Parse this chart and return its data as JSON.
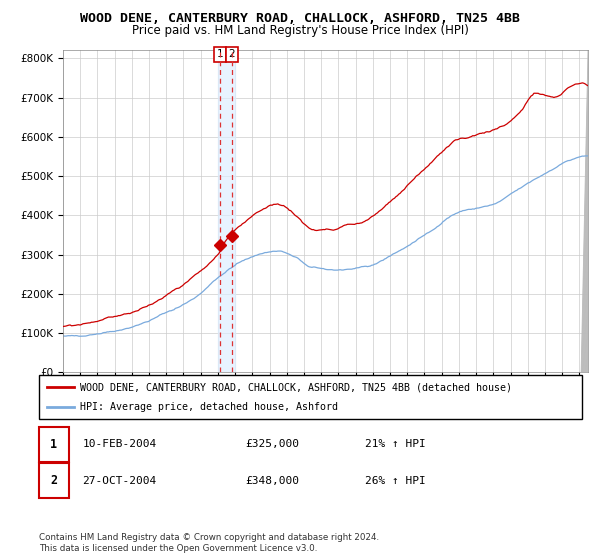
{
  "title": "WOOD DENE, CANTERBURY ROAD, CHALLOCK, ASHFORD, TN25 4BB",
  "subtitle": "Price paid vs. HM Land Registry's House Price Index (HPI)",
  "legend_line1": "WOOD DENE, CANTERBURY ROAD, CHALLOCK, ASHFORD, TN25 4BB (detached house)",
  "legend_line2": "HPI: Average price, detached house, Ashford",
  "transaction1_date": "10-FEB-2004",
  "transaction1_price": "£325,000",
  "transaction1_hpi": "21% ↑ HPI",
  "transaction2_date": "27-OCT-2004",
  "transaction2_price": "£348,000",
  "transaction2_hpi": "26% ↑ HPI",
  "footer": "Contains HM Land Registry data © Crown copyright and database right 2024.\nThis data is licensed under the Open Government Licence v3.0.",
  "hpi_color": "#7aaadd",
  "price_color": "#cc0000",
  "marker_color": "#cc0000",
  "transaction_x1": 2004.11,
  "transaction_x2": 2004.82,
  "transaction_y1": 325000,
  "transaction_y2": 348000,
  "highlight_x1": 2004.0,
  "highlight_x2": 2005.0,
  "ylim": [
    0,
    820000
  ],
  "xlim_start": 1995,
  "xlim_end": 2025.5,
  "yticks": [
    0,
    100000,
    200000,
    300000,
    400000,
    500000,
    600000,
    700000,
    800000
  ],
  "background_color": "#ffffff",
  "grid_color": "#cccccc"
}
